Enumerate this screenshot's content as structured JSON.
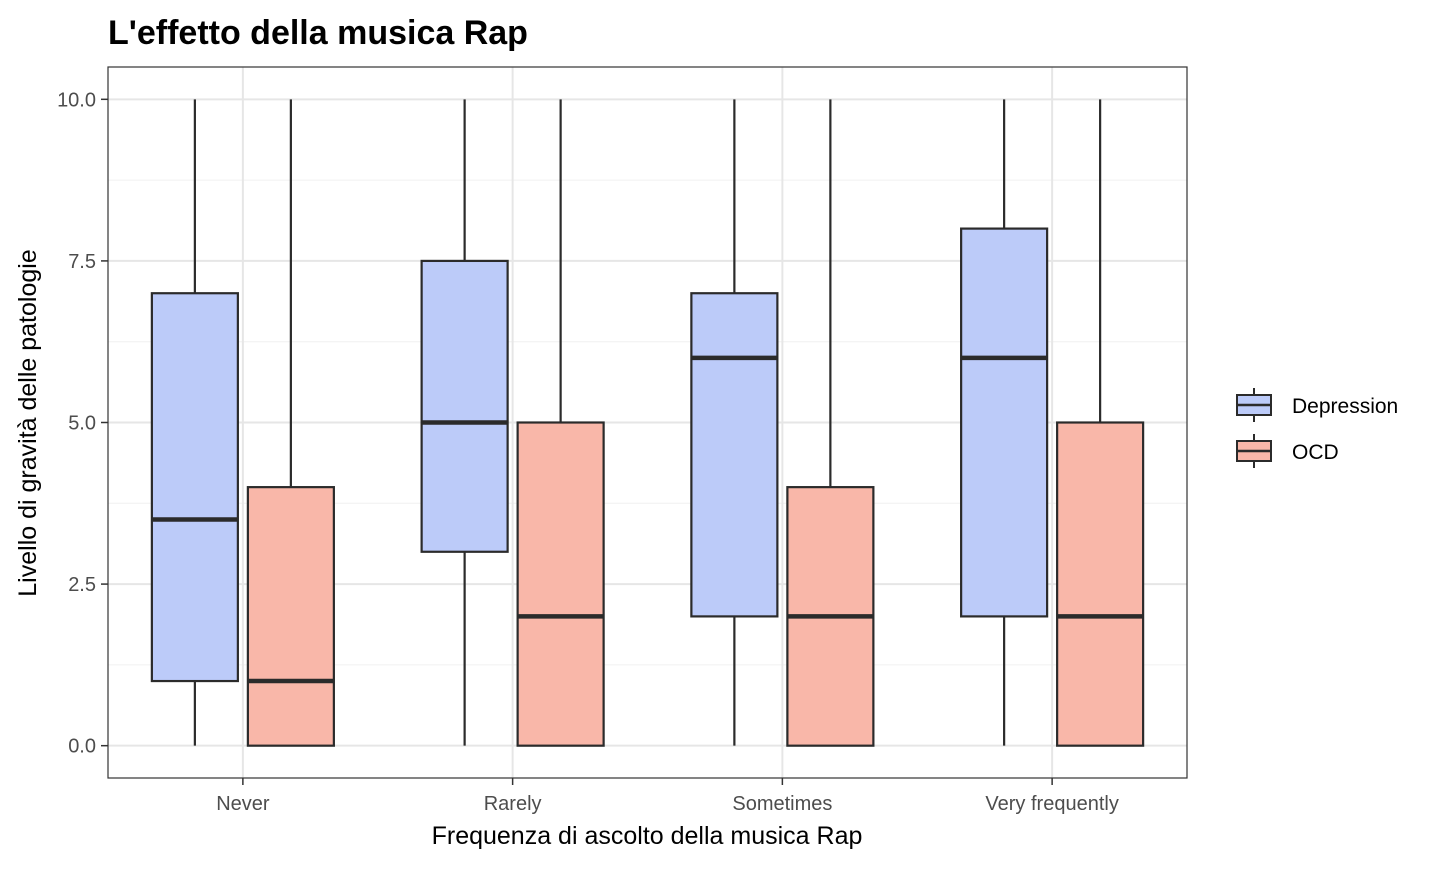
{
  "chart_data": {
    "type": "boxplot",
    "title": "L'effetto della musica Rap",
    "xlabel": "Frequenza di ascolto della musica Rap",
    "ylabel": "Livello di gravità delle patologie",
    "categories": [
      "Never",
      "Rarely",
      "Sometimes",
      "Very frequently"
    ],
    "ylim": [
      -0.5,
      10.5
    ],
    "yticks": [
      0.0,
      2.5,
      5.0,
      7.5,
      10.0
    ],
    "ytick_labels": [
      "0.0",
      "2.5",
      "5.0",
      "7.5",
      "10.0"
    ],
    "grid": true,
    "legend_position": "right",
    "series": [
      {
        "name": "Depression",
        "color": "#bccbf9",
        "boxes": [
          {
            "min": 0,
            "q1": 1,
            "median": 3.5,
            "q3": 7,
            "max": 10
          },
          {
            "min": 0,
            "q1": 3,
            "median": 5,
            "q3": 7.5,
            "max": 10
          },
          {
            "min": 0,
            "q1": 2,
            "median": 6,
            "q3": 7,
            "max": 10
          },
          {
            "min": 0,
            "q1": 2,
            "median": 6,
            "q3": 8,
            "max": 10
          }
        ]
      },
      {
        "name": "OCD",
        "color": "#f9b7a9",
        "boxes": [
          {
            "min": 0,
            "q1": 0,
            "median": 1,
            "q3": 4,
            "max": 10
          },
          {
            "min": 0,
            "q1": 0,
            "median": 2,
            "q3": 5,
            "max": 10
          },
          {
            "min": 0,
            "q1": 0,
            "median": 2,
            "q3": 4,
            "max": 10
          },
          {
            "min": 0,
            "q1": 0,
            "median": 2,
            "q3": 5,
            "max": 10
          }
        ]
      }
    ]
  }
}
